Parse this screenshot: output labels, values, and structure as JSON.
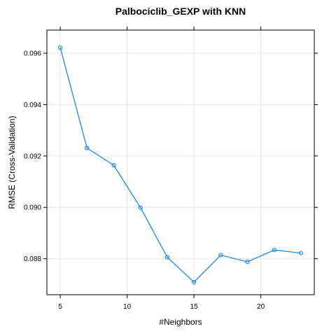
{
  "chart_data": {
    "type": "line",
    "title": "Palbociclib_GEXP with KNN",
    "xlabel": "#Neighbors",
    "ylabel": "RMSE (Cross-Validation)",
    "xlim": [
      4.0,
      24.0
    ],
    "ylim": [
      0.0866,
      0.0969
    ],
    "x_ticks": [
      5,
      10,
      15,
      20
    ],
    "x_tick_labels": [
      "5",
      "10",
      "15",
      "20"
    ],
    "y_ticks": [
      0.088,
      0.09,
      0.092,
      0.094,
      0.096
    ],
    "y_tick_labels": [
      "0.088",
      "0.090",
      "0.092",
      "0.094",
      "0.096"
    ],
    "grid": true,
    "series": [
      {
        "color": "#0080ff",
        "x": [
          5,
          7,
          9,
          11,
          13,
          15,
          17,
          19,
          21,
          23
        ],
        "values": [
          0.09622,
          0.09231,
          0.09164,
          0.08999,
          0.08806,
          0.08709,
          0.08814,
          0.08788,
          0.08834,
          0.08822
        ]
      }
    ]
  }
}
